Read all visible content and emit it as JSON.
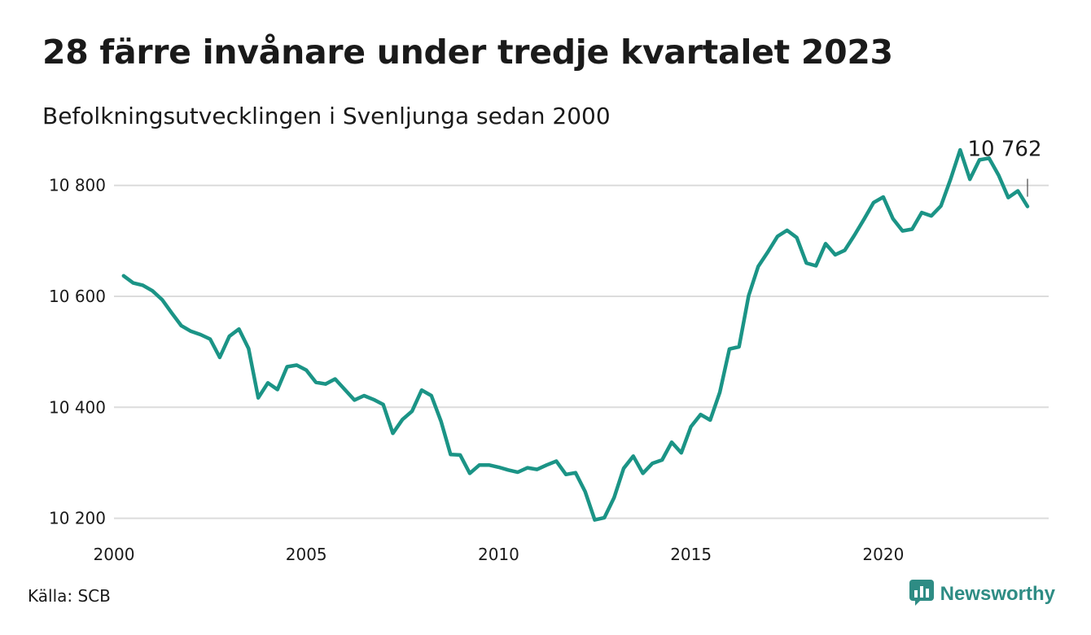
{
  "title": "28 färre invånare under tredje kvartalet 2023",
  "subtitle": "Befolkningsutvecklingen i Svenljunga sedan 2000",
  "source": "Källa: SCB",
  "brand": {
    "name": "Newsworthy",
    "icon": "newsworthy-logo-icon"
  },
  "colors": {
    "line": "#1b9486",
    "grid": "#dcdcdc",
    "brand": "#2e8c84"
  },
  "chart_data": {
    "type": "line",
    "x_ticks": [
      2000,
      2005,
      2010,
      2015,
      2020
    ],
    "x_tick_labels": [
      "2000",
      "2005",
      "2010",
      "2015",
      "2020"
    ],
    "y_ticks": [
      10200,
      10400,
      10600,
      10800
    ],
    "y_tick_labels": [
      "10 200",
      "10 400",
      "10 600",
      "10 800"
    ],
    "xlim": [
      2000,
      2024.3
    ],
    "ylim": [
      10195,
      10870
    ],
    "grid": true,
    "annotation": {
      "text": "10 762",
      "x": 2023.5,
      "y": 10762
    },
    "series": [
      {
        "values": [
          [
            2000.25,
            10637
          ],
          [
            2000.5,
            10624
          ],
          [
            2000.75,
            10620
          ],
          [
            2001.0,
            10610
          ],
          [
            2001.25,
            10594
          ],
          [
            2001.5,
            10570
          ],
          [
            2001.75,
            10547
          ],
          [
            2002.0,
            10537
          ],
          [
            2002.25,
            10531
          ],
          [
            2002.5,
            10523
          ],
          [
            2002.75,
            10490
          ],
          [
            2003.0,
            10528
          ],
          [
            2003.25,
            10541
          ],
          [
            2003.5,
            10506
          ],
          [
            2003.75,
            10417
          ],
          [
            2004.0,
            10444
          ],
          [
            2004.25,
            10432
          ],
          [
            2004.5,
            10473
          ],
          [
            2004.75,
            10476
          ],
          [
            2005.0,
            10467
          ],
          [
            2005.25,
            10445
          ],
          [
            2005.5,
            10442
          ],
          [
            2005.75,
            10451
          ],
          [
            2006.0,
            10432
          ],
          [
            2006.25,
            10413
          ],
          [
            2006.5,
            10421
          ],
          [
            2006.75,
            10414
          ],
          [
            2007.0,
            10405
          ],
          [
            2007.25,
            10353
          ],
          [
            2007.5,
            10378
          ],
          [
            2007.75,
            10393
          ],
          [
            2008.0,
            10431
          ],
          [
            2008.25,
            10421
          ],
          [
            2008.5,
            10375
          ],
          [
            2008.75,
            10315
          ],
          [
            2009.0,
            10314
          ],
          [
            2009.25,
            10281
          ],
          [
            2009.5,
            10296
          ],
          [
            2009.75,
            10296
          ],
          [
            2010.0,
            10292
          ],
          [
            2010.25,
            10287
          ],
          [
            2010.5,
            10283
          ],
          [
            2010.75,
            10291
          ],
          [
            2011.0,
            10288
          ],
          [
            2011.25,
            10296
          ],
          [
            2011.5,
            10303
          ],
          [
            2011.75,
            10279
          ],
          [
            2012.0,
            10282
          ],
          [
            2012.25,
            10248
          ],
          [
            2012.5,
            10197
          ],
          [
            2012.75,
            10201
          ],
          [
            2013.0,
            10237
          ],
          [
            2013.25,
            10290
          ],
          [
            2013.5,
            10312
          ],
          [
            2013.75,
            10281
          ],
          [
            2014.0,
            10299
          ],
          [
            2014.25,
            10305
          ],
          [
            2014.5,
            10337
          ],
          [
            2014.75,
            10318
          ],
          [
            2015.0,
            10365
          ],
          [
            2015.25,
            10387
          ],
          [
            2015.5,
            10377
          ],
          [
            2015.75,
            10427
          ],
          [
            2016.0,
            10505
          ],
          [
            2016.25,
            10509
          ],
          [
            2016.5,
            10601
          ],
          [
            2016.75,
            10654
          ],
          [
            2017.0,
            10680
          ],
          [
            2017.25,
            10708
          ],
          [
            2017.5,
            10719
          ],
          [
            2017.75,
            10706
          ],
          [
            2018.0,
            10660
          ],
          [
            2018.25,
            10655
          ],
          [
            2018.5,
            10695
          ],
          [
            2018.75,
            10675
          ],
          [
            2019.0,
            10683
          ],
          [
            2019.25,
            10710
          ],
          [
            2019.5,
            10739
          ],
          [
            2019.75,
            10769
          ],
          [
            2020.0,
            10779
          ],
          [
            2020.25,
            10740
          ],
          [
            2020.5,
            10718
          ],
          [
            2020.75,
            10721
          ],
          [
            2021.0,
            10751
          ],
          [
            2021.25,
            10745
          ],
          [
            2021.5,
            10763
          ],
          [
            2021.75,
            10811
          ],
          [
            2022.0,
            10864
          ],
          [
            2022.25,
            10811
          ],
          [
            2022.5,
            10846
          ],
          [
            2022.75,
            10849
          ],
          [
            2023.0,
            10818
          ],
          [
            2023.25,
            10778
          ],
          [
            2023.5,
            10790
          ],
          [
            2023.75,
            10762
          ]
        ]
      }
    ]
  }
}
